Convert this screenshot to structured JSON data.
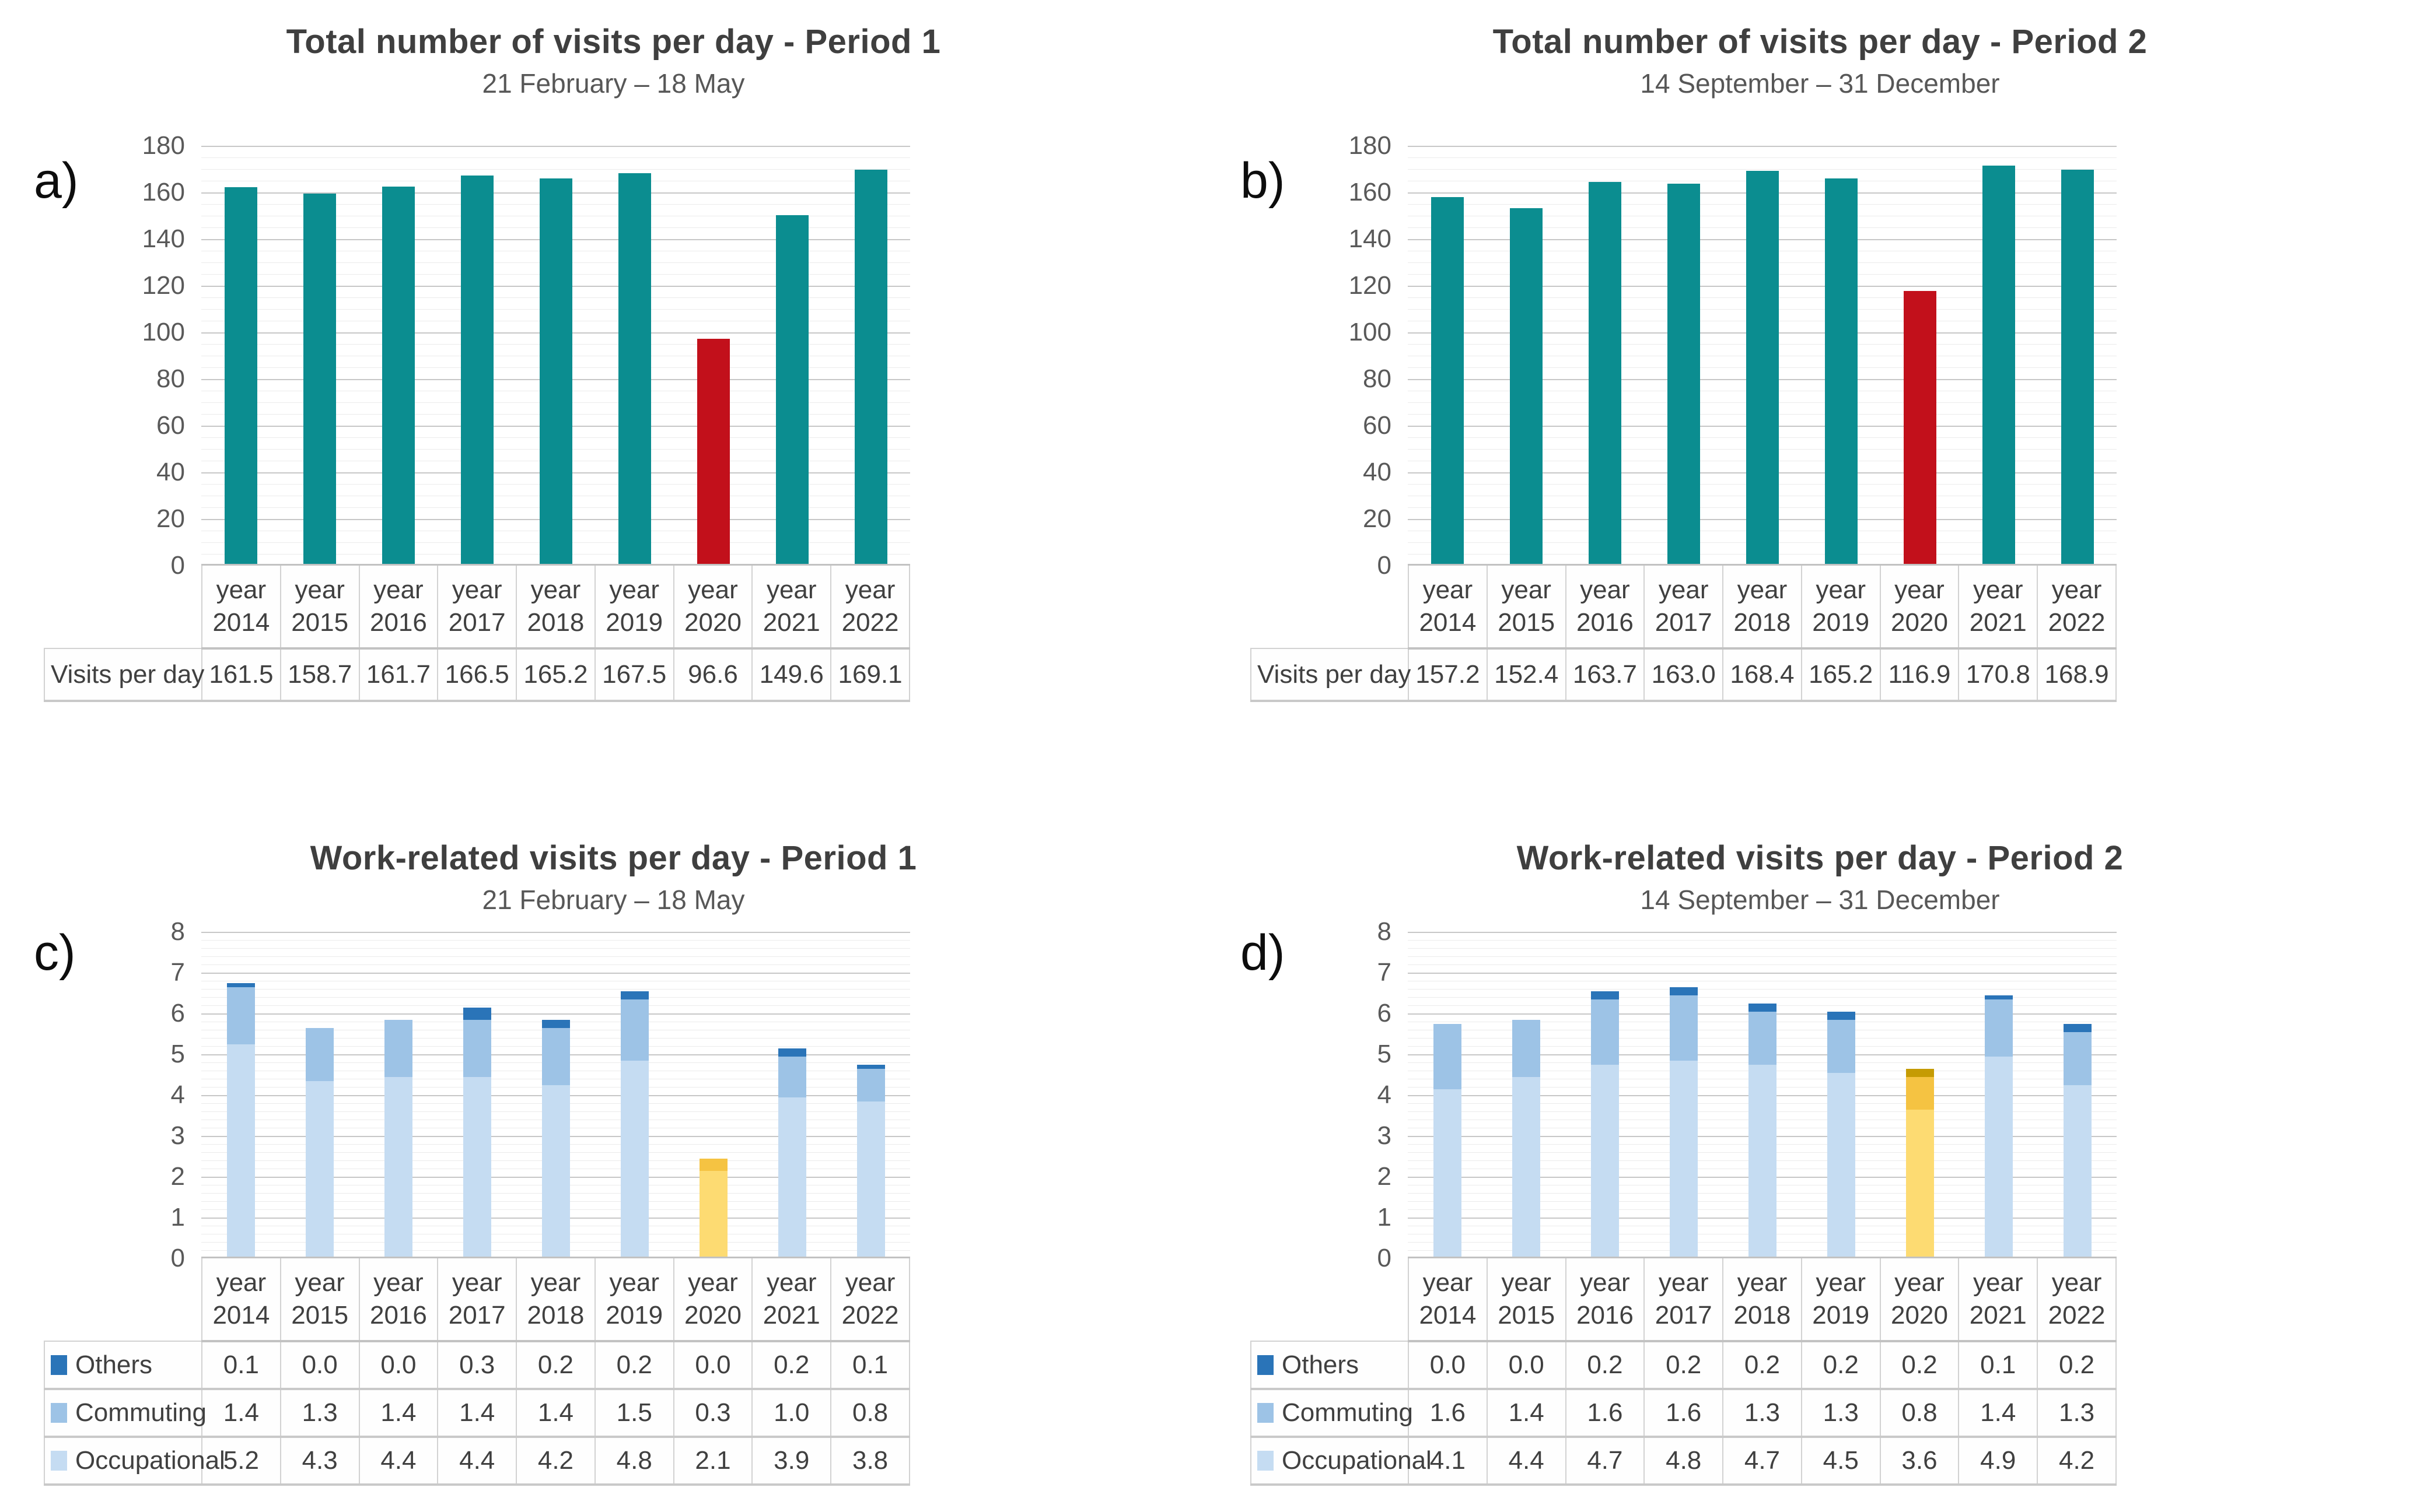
{
  "page": {
    "background": "#ffffff",
    "colors": {
      "bar_teal": "#0B8D90",
      "bar_red_highlight": "#C2101B",
      "others_blue": "#2A74B8",
      "commuting_blue": "#9DC3E6",
      "occupational_blue": "#C5DCF2",
      "others_gold": "#C59B04",
      "commuting_gold": "#F5C342",
      "occupational_gold": "#FDDB72",
      "grid_major": "#C7C7C7",
      "grid_minor": "#EBEBEB",
      "title_text": "#3F3F3F",
      "axis_text": "#595959"
    }
  },
  "chart_data": [
    {
      "id": "a",
      "panel_label": "a)",
      "type": "bar",
      "stacked": false,
      "title": "Total number of visits per day - Period 1",
      "subtitle": "21 February – 18 May",
      "xlabel": "",
      "ylabel": "",
      "ylim": [
        0,
        180
      ],
      "y_major_step": 20,
      "y_minor_step": 5,
      "grid": true,
      "legend_position": "none",
      "categories": [
        "year 2014",
        "year 2015",
        "year 2016",
        "year 2017",
        "year 2018",
        "year 2019",
        "year 2020",
        "year 2021",
        "year 2022"
      ],
      "series": [
        {
          "name": "Visits per day",
          "values": [
            161.5,
            158.7,
            161.7,
            166.5,
            165.2,
            167.5,
            96.6,
            149.6,
            169.1
          ]
        }
      ],
      "bar_color": "#0B8D90",
      "highlight_color": "#C2101B",
      "highlight_index": 6
    },
    {
      "id": "b",
      "panel_label": "b)",
      "type": "bar",
      "stacked": false,
      "title": "Total number of visits per day - Period 2",
      "subtitle": "14 September – 31 December",
      "xlabel": "",
      "ylabel": "",
      "ylim": [
        0,
        180
      ],
      "y_major_step": 20,
      "y_minor_step": 5,
      "grid": true,
      "legend_position": "none",
      "categories": [
        "year 2014",
        "year 2015",
        "year 2016",
        "year 2017",
        "year 2018",
        "year 2019",
        "year 2020",
        "year 2021",
        "year 2022"
      ],
      "series": [
        {
          "name": "Visits per day",
          "values": [
            157.2,
            152.4,
            163.7,
            163.0,
            168.4,
            165.2,
            116.9,
            170.8,
            168.9
          ]
        }
      ],
      "bar_color": "#0B8D90",
      "highlight_color": "#C2101B",
      "highlight_index": 6
    },
    {
      "id": "c",
      "panel_label": "c)",
      "type": "bar",
      "stacked": true,
      "title": "Work-related visits per day - Period 1",
      "subtitle": "21 February – 18 May",
      "xlabel": "",
      "ylabel": "",
      "ylim": [
        0,
        8
      ],
      "y_major_step": 1,
      "y_minor_step": 0.2,
      "grid": true,
      "legend_position": "table-rows",
      "categories": [
        "year 2014",
        "year 2015",
        "year 2016",
        "year 2017",
        "year 2018",
        "year 2019",
        "year 2020",
        "year 2021",
        "year 2022"
      ],
      "series": [
        {
          "name": "Others",
          "color": "#2A74B8",
          "highlight_color": "#C59B04",
          "values": [
            0.1,
            0.0,
            0.0,
            0.3,
            0.2,
            0.2,
            0.0,
            0.2,
            0.1
          ]
        },
        {
          "name": "Commuting",
          "color": "#9DC3E6",
          "highlight_color": "#F5C342",
          "values": [
            1.4,
            1.3,
            1.4,
            1.4,
            1.4,
            1.5,
            0.3,
            1.0,
            0.8
          ]
        },
        {
          "name": "Occupational",
          "color": "#C5DCF2",
          "highlight_color": "#FDDB72",
          "values": [
            5.2,
            4.3,
            4.4,
            4.4,
            4.2,
            4.8,
            2.1,
            3.9,
            3.8
          ]
        }
      ],
      "highlight_index": 6
    },
    {
      "id": "d",
      "panel_label": "d)",
      "type": "bar",
      "stacked": true,
      "title": "Work-related visits per day - Period 2",
      "subtitle": "14 September – 31 December",
      "xlabel": "",
      "ylabel": "",
      "ylim": [
        0,
        8
      ],
      "y_major_step": 1,
      "y_minor_step": 0.2,
      "grid": true,
      "legend_position": "table-rows",
      "categories": [
        "year 2014",
        "year 2015",
        "year 2016",
        "year 2017",
        "year 2018",
        "year 2019",
        "year 2020",
        "year 2021",
        "year 2022"
      ],
      "series": [
        {
          "name": "Others",
          "color": "#2A74B8",
          "highlight_color": "#C59B04",
          "values": [
            0.0,
            0.0,
            0.2,
            0.2,
            0.2,
            0.2,
            0.2,
            0.1,
            0.2
          ]
        },
        {
          "name": "Commuting",
          "color": "#9DC3E6",
          "highlight_color": "#F5C342",
          "values": [
            1.6,
            1.4,
            1.6,
            1.6,
            1.3,
            1.3,
            0.8,
            1.4,
            1.3
          ]
        },
        {
          "name": "Occupational",
          "color": "#C5DCF2",
          "highlight_color": "#FDDB72",
          "values": [
            4.1,
            4.4,
            4.7,
            4.8,
            4.7,
            4.5,
            3.6,
            4.9,
            4.2
          ]
        }
      ],
      "highlight_index": 6
    }
  ]
}
